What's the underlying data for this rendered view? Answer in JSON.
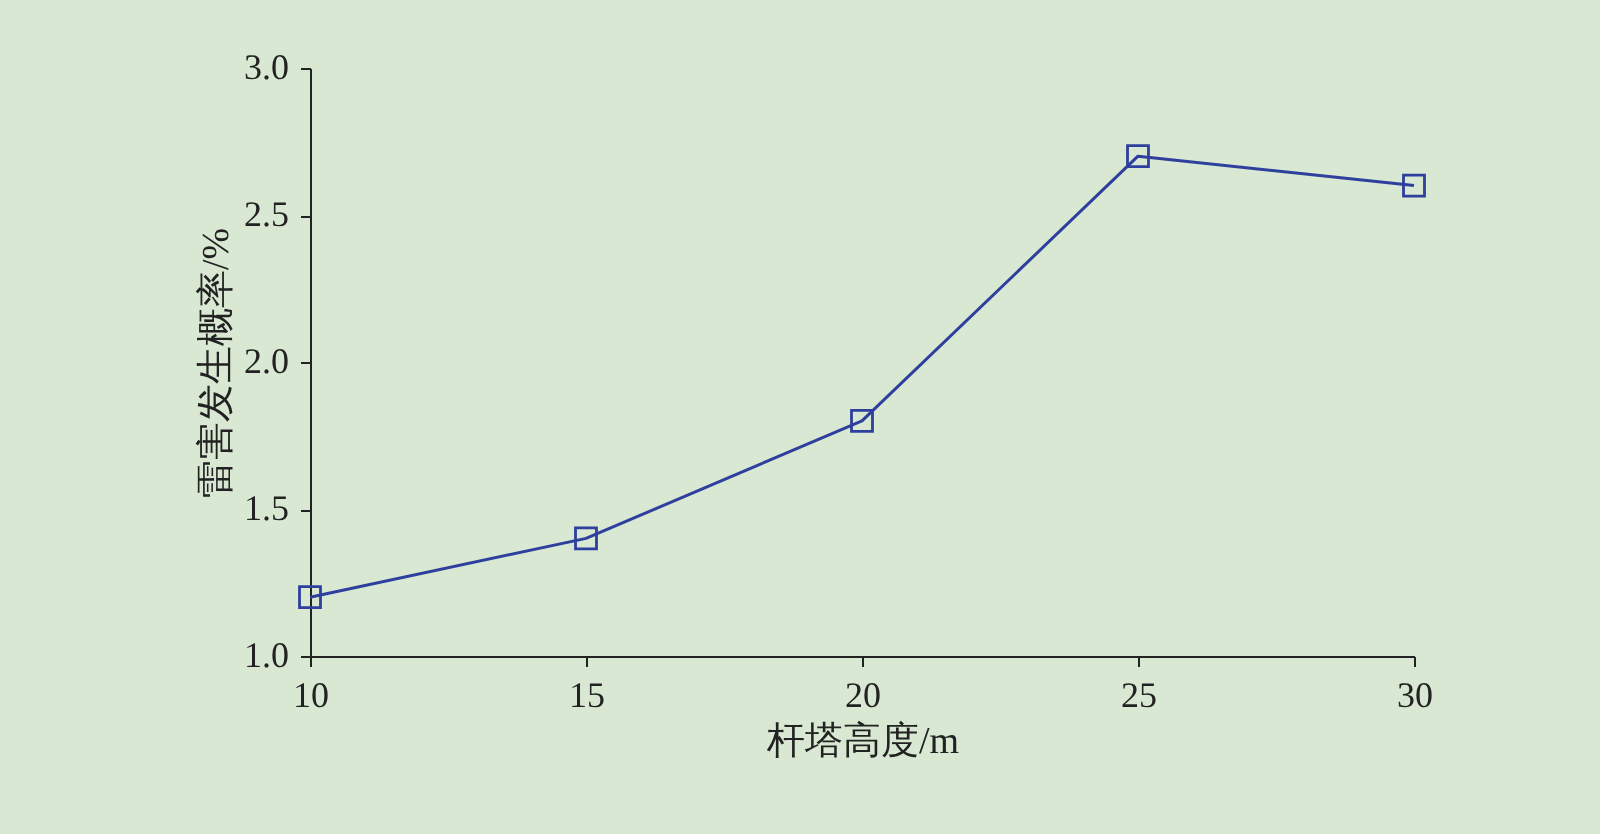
{
  "chart_data": {
    "type": "line",
    "xlabel": "杆塔高度/m",
    "ylabel": "雷害发生概率/%",
    "x": [
      10,
      15,
      20,
      25,
      30
    ],
    "series": [
      {
        "color": "#2e3f9e",
        "values": [
          1.2,
          1.4,
          1.8,
          2.7,
          2.6
        ]
      }
    ],
    "xlim": [
      10,
      30
    ],
    "xticks": [
      10,
      15,
      20,
      25,
      30
    ],
    "ylim": [
      1.0,
      3.0
    ],
    "yticks": [
      {
        "value": 1.0,
        "label": "1.0"
      },
      {
        "value": 1.5,
        "label": "1.5"
      },
      {
        "value": 2.0,
        "label": "2.0"
      },
      {
        "value": 2.5,
        "label": "2.5"
      },
      {
        "value": 3.0,
        "label": "3.0"
      }
    ],
    "marker": "square",
    "line_style": "solid"
  }
}
